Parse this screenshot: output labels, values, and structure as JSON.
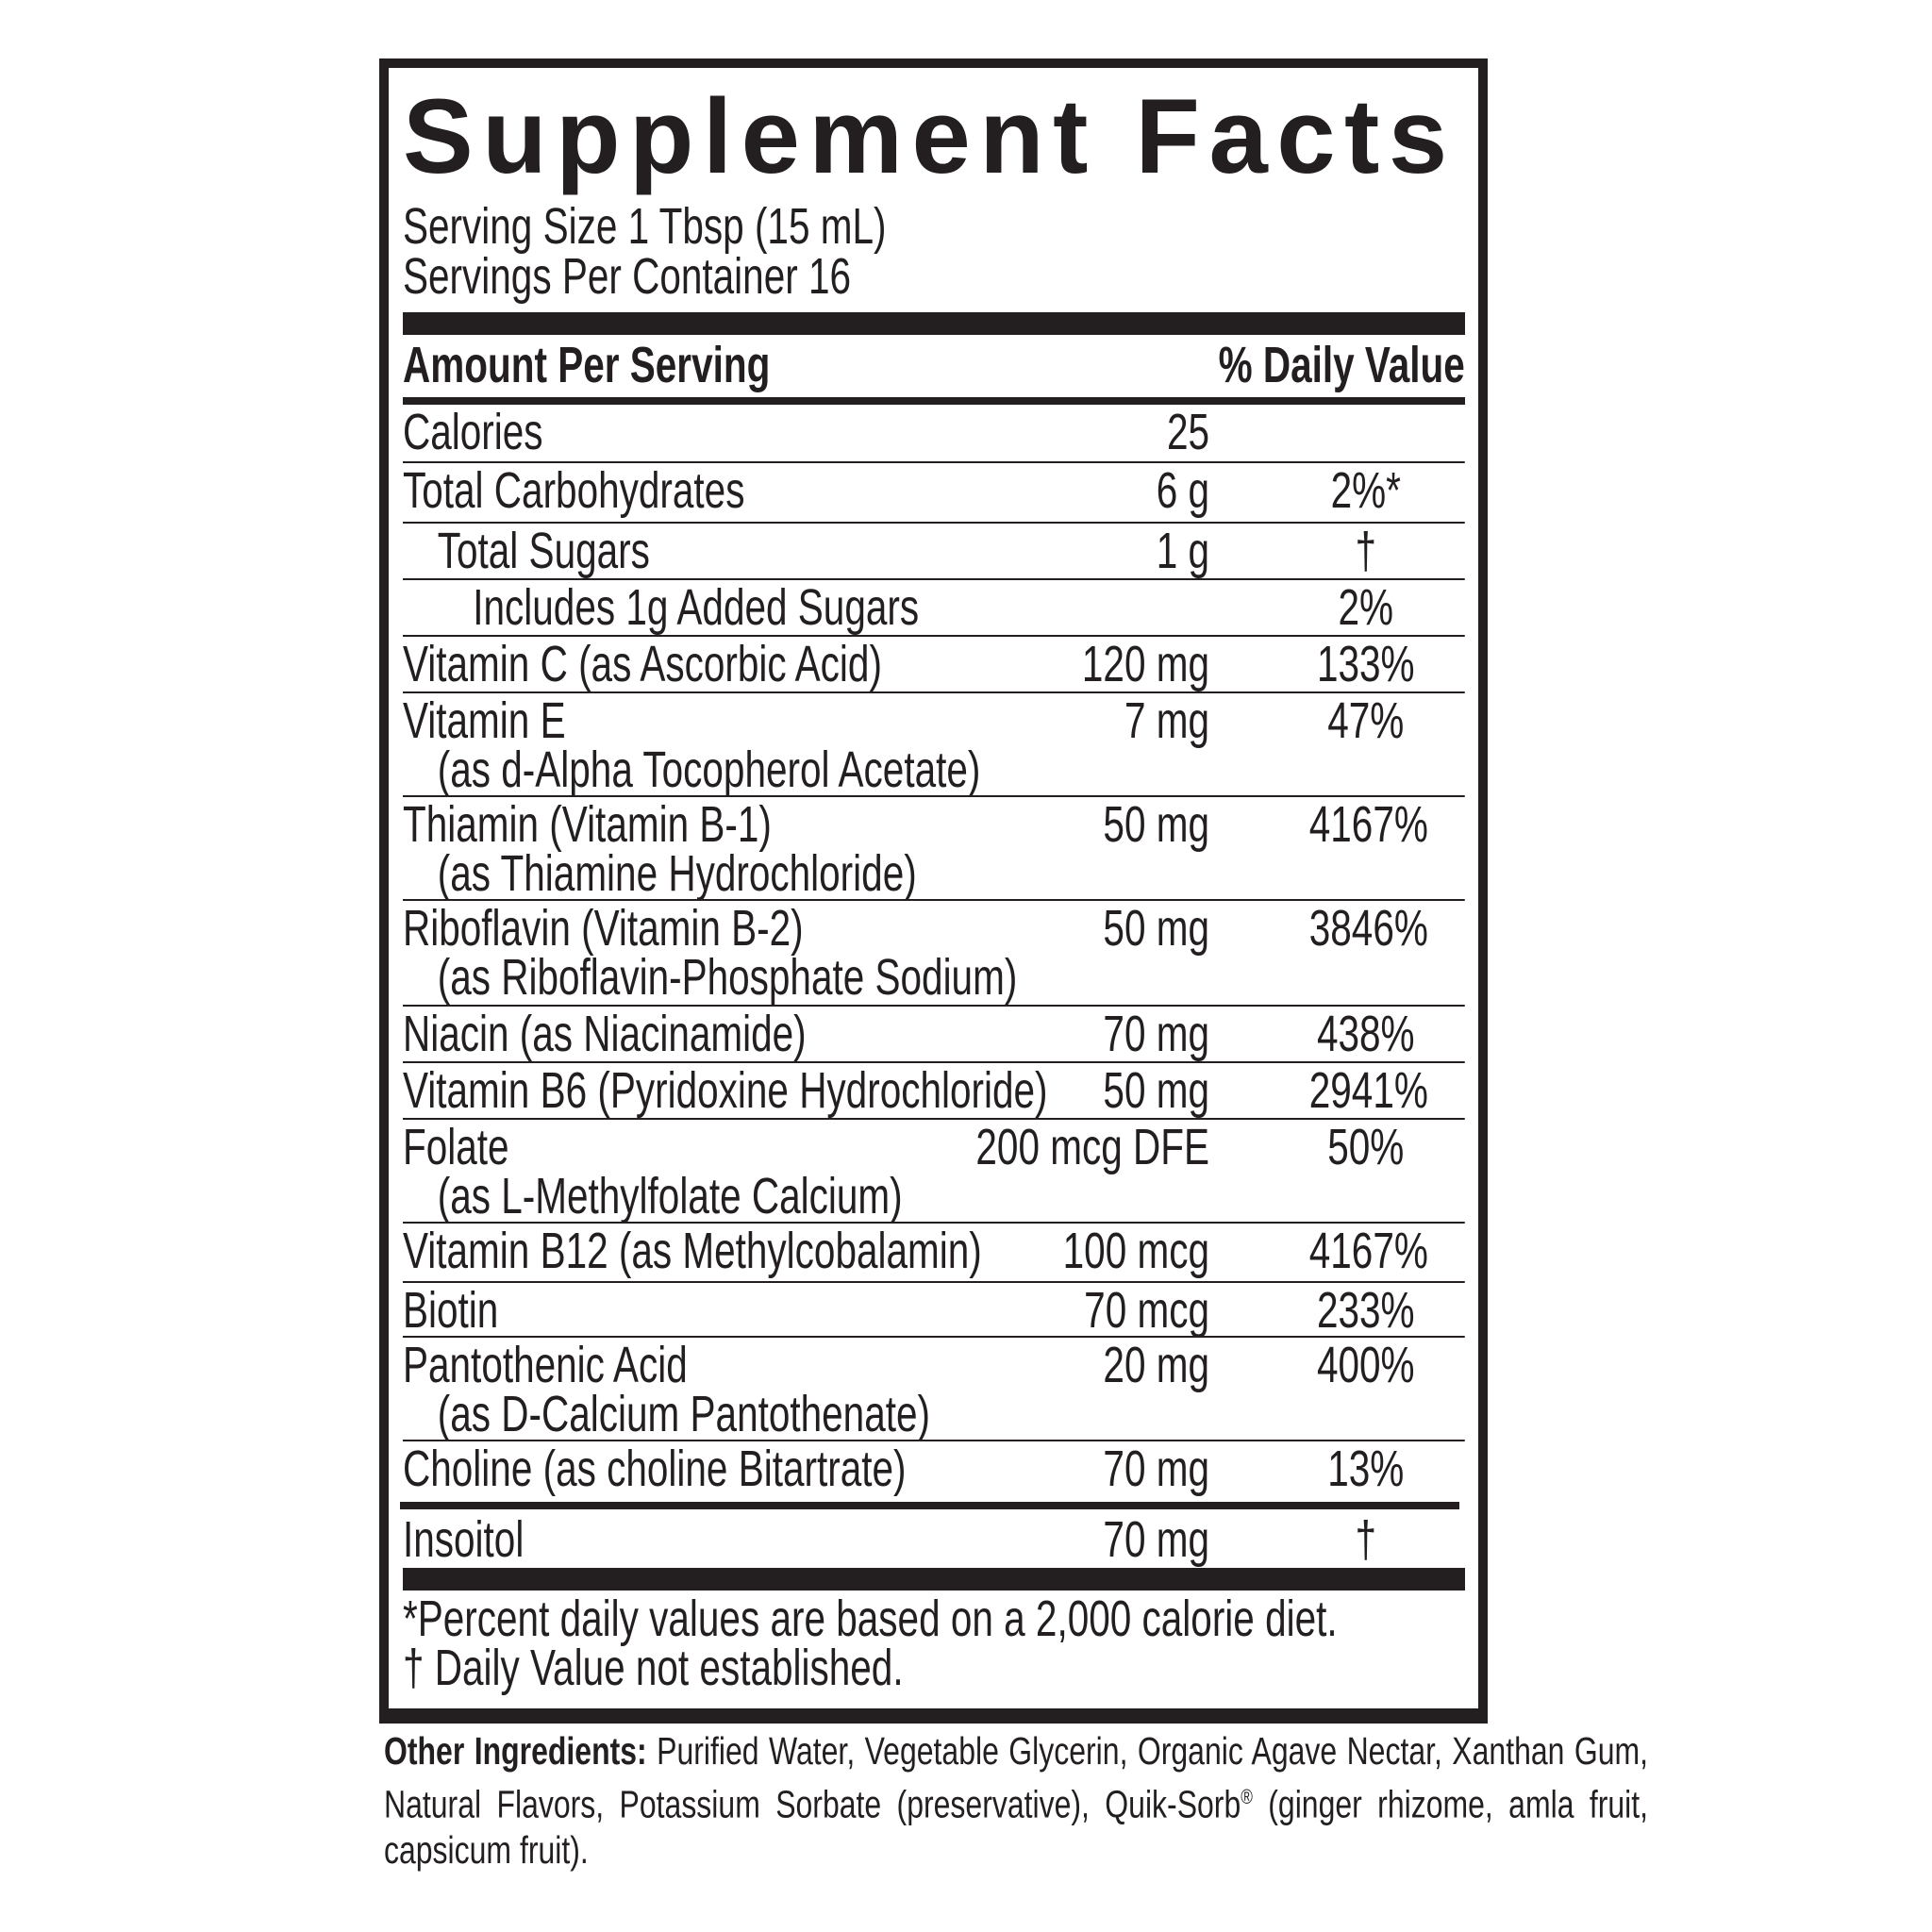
{
  "title": "Supplement Facts",
  "serving_size": "Serving Size 1 Tbsp (15 mL)",
  "servings_per_container": "Servings Per Container 16",
  "header": {
    "amount": "Amount Per Serving",
    "dv": "% Daily Value"
  },
  "rows": [
    {
      "name": "Calories",
      "amount": "25",
      "dv": ""
    },
    {
      "name": "Total Carbohydrates",
      "amount": "6 g",
      "dv": "2%*"
    },
    {
      "name": "Total Sugars",
      "amount": "1 g",
      "dv": "†"
    },
    {
      "name": "Includes 1g Added Sugars",
      "amount": "",
      "dv": "2%"
    },
    {
      "name": "Vitamin C (as Ascorbic Acid)",
      "amount": "120 mg",
      "dv": "133%"
    },
    {
      "name": "Vitamin E",
      "sub": "(as d-Alpha Tocopherol Acetate)",
      "amount": "7 mg",
      "dv": "47%"
    },
    {
      "name": "Thiamin (Vitamin B-1)",
      "sub": "(as Thiamine Hydrochloride)",
      "amount": "50 mg",
      "dv": "4167%"
    },
    {
      "name": "Riboflavin (Vitamin B-2)",
      "sub": "(as Riboflavin-Phosphate Sodium)",
      "amount": "50 mg",
      "dv": "3846%"
    },
    {
      "name": "Niacin (as Niacinamide)",
      "amount": "70 mg",
      "dv": "438%"
    },
    {
      "name": "Vitamin B6 (Pyridoxine Hydrochloride)",
      "amount": "50 mg",
      "dv": "2941%"
    },
    {
      "name": "Folate",
      "sub": "(as L-Methylfolate Calcium)",
      "amount": "200 mcg DFE",
      "dv": "50%"
    },
    {
      "name": "Vitamin B12 (as Methylcobalamin)",
      "amount": "100 mcg",
      "dv": "4167%"
    },
    {
      "name": "Biotin",
      "amount": "70 mcg",
      "dv": "233%"
    },
    {
      "name": "Pantothenic Acid",
      "sub": "(as D-Calcium Pantothenate)",
      "amount": "20 mg",
      "dv": "400%"
    },
    {
      "name": "Choline (as choline Bitartrate)",
      "amount": "70 mg",
      "dv": "13%"
    },
    {
      "name": "Insoitol",
      "amount": "70 mg",
      "dv": "†"
    }
  ],
  "footnotes": [
    "*Percent daily values are based on a 2,000 calorie diet.",
    "† Daily Value not established."
  ],
  "other_ingredients": {
    "label": "Other Ingredients:",
    "text": "Purified Water, Vegetable Glycerin, Organic Agave Nectar, Xanthan Gum, Natural Flavors, Potassium Sorbate (preservative), Quik-Sorb",
    "registered": "®",
    "text_after": "(ginger rhizome, amla fruit, capsicum fruit)."
  }
}
